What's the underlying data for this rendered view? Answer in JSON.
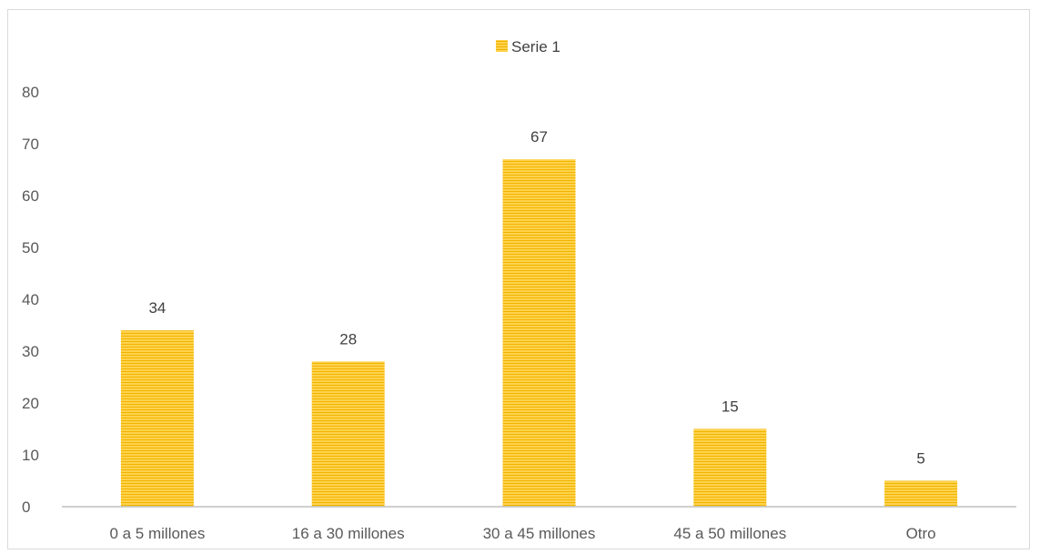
{
  "chart_data": {
    "type": "bar",
    "categories": [
      "0 a 5 millones",
      "16 a 30 millones",
      "30 a 45 millones",
      "45 a 50 millones",
      "Otro"
    ],
    "series": [
      {
        "name": "Serie 1",
        "values": [
          34,
          28,
          67,
          15,
          5
        ]
      }
    ],
    "data_labels": [
      "34",
      "28",
      "67",
      "15",
      "5"
    ],
    "y_ticks": [
      "0",
      "10",
      "20",
      "30",
      "40",
      "50",
      "60",
      "70",
      "80"
    ],
    "ylim": [
      0,
      80
    ],
    "grid": false,
    "legend_position": "top-center",
    "colors": {
      "bar": "#ffc000",
      "bar_stripe": "#f2b700",
      "axis": "#bfbfbf",
      "frame": "#d9d9d9"
    }
  }
}
